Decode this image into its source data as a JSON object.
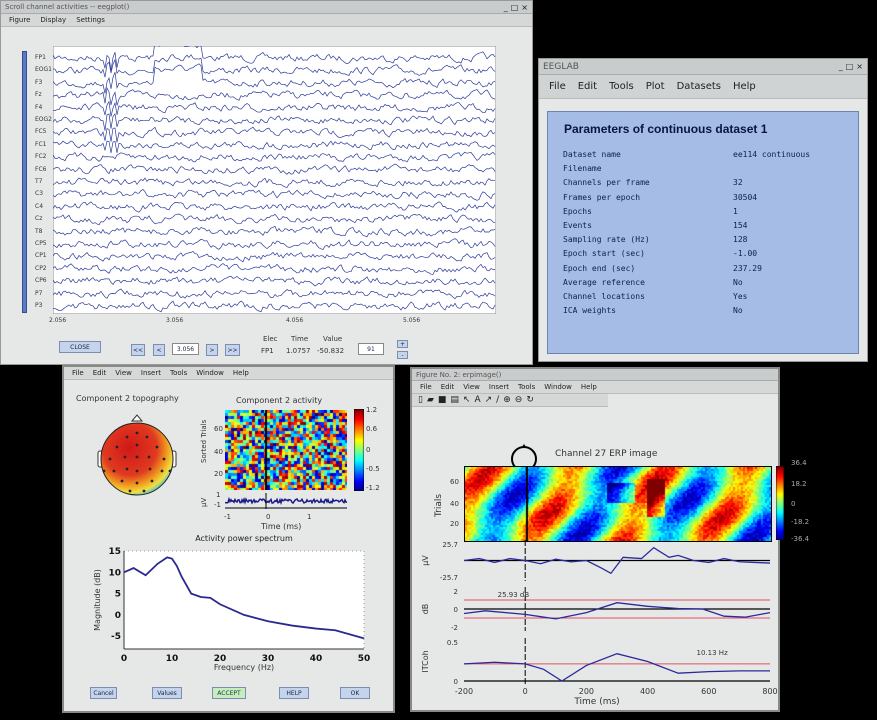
{
  "scroll_window": {
    "title": "Scroll channel activities -- eegplot()",
    "menu": [
      "Figure",
      "Display",
      "Settings"
    ],
    "channels": [
      "FP1",
      "EOG1",
      "F3",
      "Fz",
      "F4",
      "EOG2",
      "FC5",
      "FC1",
      "FC2",
      "FC6",
      "T7",
      "C3",
      "C4",
      "Cz",
      "T8",
      "CP5",
      "CP1",
      "CP2",
      "CP6",
      "P7",
      "P3"
    ],
    "x_ticks": [
      "2.056",
      "3.056",
      "4.056",
      "5.056"
    ],
    "close_label": "CLOSE",
    "nav": [
      "<<",
      "<",
      ">",
      ">>"
    ],
    "time_value": "3.056",
    "readout_headers": [
      "Elec",
      "Time",
      "Value"
    ],
    "readout_values": [
      "FP1",
      "1.0757",
      "-50.832"
    ],
    "scale_value": "91",
    "scale_up": "+",
    "scale_down": "-"
  },
  "eeglab": {
    "title": "EEGLAB",
    "menu": [
      "File",
      "Edit",
      "Tools",
      "Plot",
      "Datasets",
      "Help"
    ],
    "panel_title": "Parameters of continuous dataset 1",
    "params": [
      [
        "Dataset name",
        "ee114 continuous"
      ],
      [
        "Filename",
        ""
      ],
      [
        "Channels per frame",
        "32"
      ],
      [
        "Frames per epoch",
        "30504"
      ],
      [
        "Epochs",
        "1"
      ],
      [
        "Events",
        "154"
      ],
      [
        "Sampling rate (Hz)",
        "128"
      ],
      [
        "Epoch start (sec)",
        "-1.00"
      ],
      [
        "Epoch end (sec)",
        "237.29"
      ],
      [
        "Average reference",
        "No"
      ],
      [
        "Channel locations",
        "Yes"
      ],
      [
        "ICA weights",
        "No"
      ]
    ]
  },
  "component_window": {
    "menu": [
      "File",
      "Edit",
      "View",
      "Insert",
      "Tools",
      "Window",
      "Help"
    ],
    "topo_title": "Component 2 topography",
    "activity_title": "Component 2 activity",
    "activity_ylabel": "Sorted Trials",
    "activity_yticks": [
      "20",
      "40",
      "60"
    ],
    "colorbar_ticks": [
      "1.2",
      "0.6",
      "0",
      "-0.5",
      "-1.2"
    ],
    "erp_ylabel": "µV",
    "erp_yticks": [
      "1",
      "-1"
    ],
    "activity_xticks": [
      "-1",
      "0",
      "1"
    ],
    "activity_xlabel": "Time (ms)",
    "buttons": [
      "Cancel",
      "Values",
      "ACCEPT",
      "HELP",
      "OK"
    ]
  },
  "erp_window": {
    "title": "Figure No. 2: erpimage()",
    "menu": [
      "File",
      "Edit",
      "View",
      "Insert",
      "Tools",
      "Window",
      "Help"
    ],
    "image_title": "Channel 27 ERP image",
    "image_ylabel": "Trials",
    "image_yticks": [
      "20",
      "40",
      "60"
    ],
    "colorbar_ticks": [
      "36.4",
      "18.2",
      "0",
      "-18.2",
      "-36.4"
    ],
    "erp_ylabel": "µV",
    "erp_yticks": [
      "25.7",
      "-25.7"
    ],
    "ersp_ylabel": "dB",
    "ersp_yticks": [
      "2",
      "0",
      "-2"
    ],
    "ersp_annotation": "25.93 dB",
    "itc_ylabel": "ITCoh",
    "itc_yticks": [
      "0.5",
      "0"
    ],
    "itc_annotation": "10.13 Hz"
  },
  "chart_data": [
    {
      "type": "line",
      "title": "Activity power spectrum",
      "xlabel": "Frequency (Hz)",
      "ylabel": "Magnitude (dB)",
      "xlim": [
        0,
        50
      ],
      "ylim": [
        -8,
        15
      ],
      "x_ticks": [
        "0",
        "10",
        "20",
        "30",
        "40",
        "50"
      ],
      "y_ticks": [
        "15",
        "10",
        "5",
        "0",
        "-5"
      ],
      "grid": true,
      "x": [
        0,
        2,
        4.5,
        7,
        9,
        10,
        11,
        12,
        14,
        16,
        18,
        20,
        25,
        30,
        35,
        40,
        44,
        50
      ],
      "y": [
        10,
        11,
        9.3,
        12,
        13.5,
        13.2,
        11.5,
        9,
        5,
        4.2,
        4,
        2.5,
        0,
        -1.5,
        -2.5,
        -3.2,
        -3.6,
        -5.5
      ]
    },
    {
      "type": "line",
      "ylabel": "µV",
      "xlim": [
        -200,
        800
      ],
      "ylim": [
        -25.7,
        25.7
      ],
      "x": [
        -200,
        -150,
        -100,
        -50,
        0,
        50,
        100,
        150,
        200,
        250,
        280,
        320,
        380,
        420,
        470,
        500,
        550,
        600,
        650,
        700,
        750,
        800
      ],
      "y": [
        0,
        3,
        -3,
        3,
        0,
        -5,
        2,
        -2,
        0,
        -12,
        -20,
        5,
        3,
        20,
        5,
        8,
        0,
        -3,
        3,
        -2,
        -3,
        -4
      ]
    },
    {
      "type": "line",
      "ylabel": "dB",
      "xlim": [
        -200,
        800
      ],
      "ylim": [
        -2,
        2
      ],
      "significance": [
        -1,
        1
      ],
      "x": [
        -200,
        -130,
        0,
        100,
        200,
        300,
        400,
        500,
        580,
        650,
        720,
        800
      ],
      "y": [
        -0.5,
        -0.2,
        -0.6,
        -1.1,
        -0.4,
        0.7,
        0.3,
        0.05,
        0,
        -0.8,
        -0.9,
        -0.4
      ]
    },
    {
      "type": "line",
      "ylabel": "ITCoh",
      "xlabel": "Time (ms)",
      "xlim": [
        -200,
        800
      ],
      "ylim": [
        0,
        0.5
      ],
      "threshold": 0.22,
      "x_ticks": [
        "-200",
        "0",
        "200",
        "400",
        "600",
        "800"
      ],
      "x": [
        -200,
        -100,
        0,
        60,
        120,
        200,
        300,
        400,
        500,
        600,
        700,
        800
      ],
      "y": [
        0.22,
        0.24,
        0.22,
        0.15,
        0.0,
        0.2,
        0.35,
        0.25,
        0.1,
        0.12,
        0.13,
        0.13
      ]
    }
  ]
}
